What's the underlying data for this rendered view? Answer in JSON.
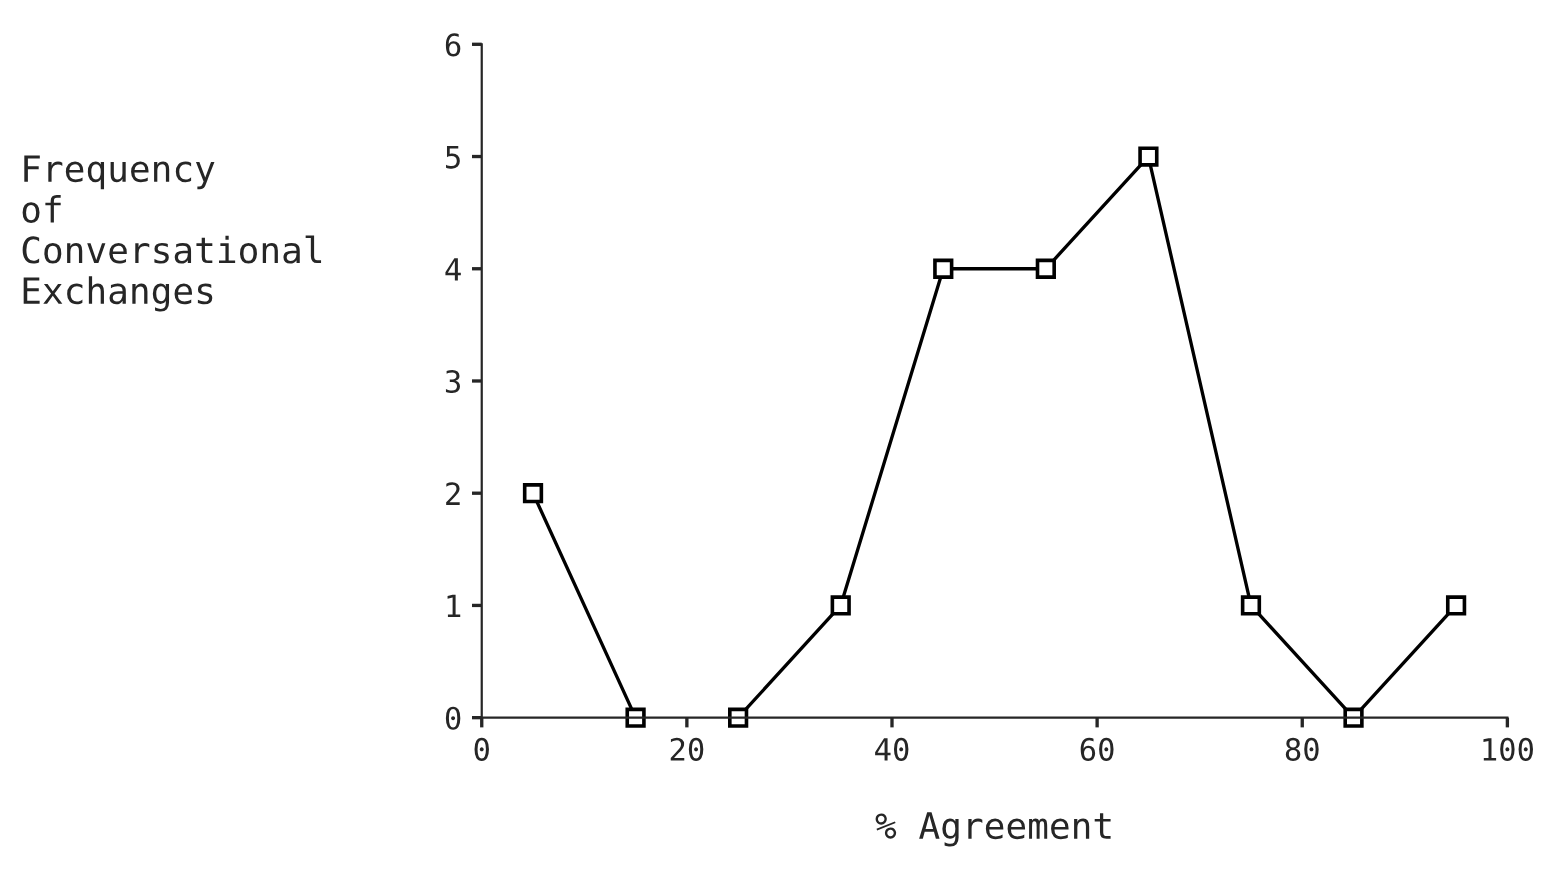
{
  "chart_data": {
    "type": "line",
    "xlabel": "% Agreement",
    "ylabel": "Frequency\nof\nConversational\nExchanges",
    "series": [
      {
        "color": "#000000",
        "x": [
          5,
          15
        ],
        "values": [
          2,
          0
        ]
      },
      {
        "color": "#000000",
        "x": [
          25,
          35,
          45,
          55,
          65,
          75,
          85,
          95
        ],
        "values": [
          0,
          1,
          4,
          4,
          5,
          1,
          0,
          1
        ]
      }
    ],
    "xlim": [
      0,
      100
    ],
    "xticks": [
      0,
      20,
      40,
      60,
      80,
      100
    ],
    "ylim": [
      0,
      6
    ],
    "yticks": [
      0,
      1,
      2,
      3,
      4,
      5,
      6
    ],
    "marker": "square",
    "line_style": "solid",
    "grid": false,
    "legend": false
  }
}
